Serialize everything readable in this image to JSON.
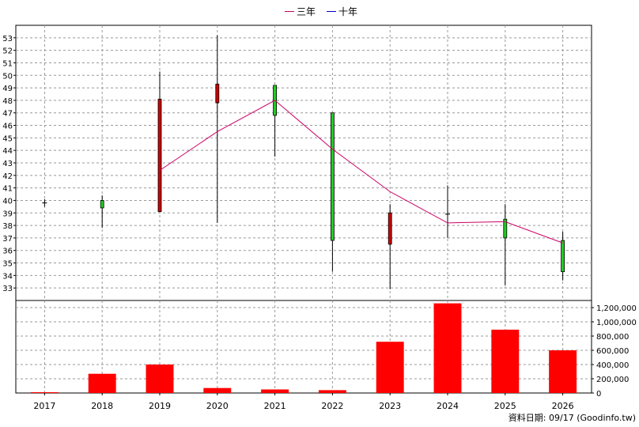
{
  "chart_data": {
    "type": "candlestick",
    "legend": [
      {
        "name": "三年",
        "color": "#cc0066"
      },
      {
        "name": "十年",
        "color": "#0000cc"
      }
    ],
    "categories": [
      "2017",
      "2018",
      "2019",
      "2020",
      "2021",
      "2022",
      "2023",
      "2024",
      "2025",
      "2026"
    ],
    "candles": [
      {
        "open": 39.8,
        "close": 39.8,
        "high": 40.1,
        "low": 39.5,
        "color": "#000000"
      },
      {
        "open": 39.4,
        "close": 40.0,
        "high": 40.4,
        "low": 37.8,
        "color": "#22cc22"
      },
      {
        "open": 39.1,
        "close": 48.1,
        "high": 50.3,
        "low": 39.1,
        "color": "#cc0000"
      },
      {
        "open": 47.8,
        "close": 49.3,
        "high": 53.2,
        "low": 38.2,
        "color": "#cc0000"
      },
      {
        "open": 46.8,
        "close": 49.2,
        "high": 49.2,
        "low": 43.5,
        "color": "#22cc22"
      },
      {
        "open": 36.8,
        "close": 47.0,
        "high": 47.0,
        "low": 34.3,
        "color": "#22cc22"
      },
      {
        "open": 36.5,
        "close": 39.0,
        "high": 39.7,
        "low": 32.9,
        "color": "#cc0000"
      },
      {
        "open": 38.9,
        "close": 38.9,
        "high": 41.2,
        "low": 37.0,
        "color": "#000000"
      },
      {
        "open": 37.0,
        "close": 38.5,
        "high": 39.7,
        "low": 33.2,
        "color": "#22cc22"
      },
      {
        "open": 34.3,
        "close": 36.8,
        "high": 37.5,
        "low": 33.6,
        "color": "#22cc22"
      }
    ],
    "line_3y": {
      "name": "三年",
      "x_from_index": 2,
      "values": [
        42.4,
        45.5,
        48.0,
        44.1,
        40.7,
        38.2,
        38.3,
        36.6
      ]
    },
    "volume": [
      0,
      270000,
      400000,
      70000,
      50000,
      40000,
      720000,
      1260000,
      890000,
      600000
    ],
    "price_axis": {
      "min": 32,
      "max": 54,
      "ticks": [
        33,
        34,
        35,
        36,
        37,
        38,
        39,
        40,
        41,
        42,
        43,
        44,
        45,
        46,
        47,
        48,
        49,
        50,
        51,
        52,
        53
      ]
    },
    "volume_axis": {
      "min": 0,
      "max": 1300000,
      "ticks": [
        0,
        200000,
        400000,
        600000,
        800000,
        1000000,
        1200000
      ],
      "tick_labels": [
        "0",
        "200,000",
        "400,000",
        "600,000",
        "800,000",
        "1,000,000",
        "1,200,000"
      ]
    },
    "grid": true
  },
  "footer": "資料日期: 09/17  (Goodinfo.tw)",
  "colors": {
    "volume_bar": "#ff0000",
    "grid": "#999999",
    "line_3y": "#cc0066"
  }
}
